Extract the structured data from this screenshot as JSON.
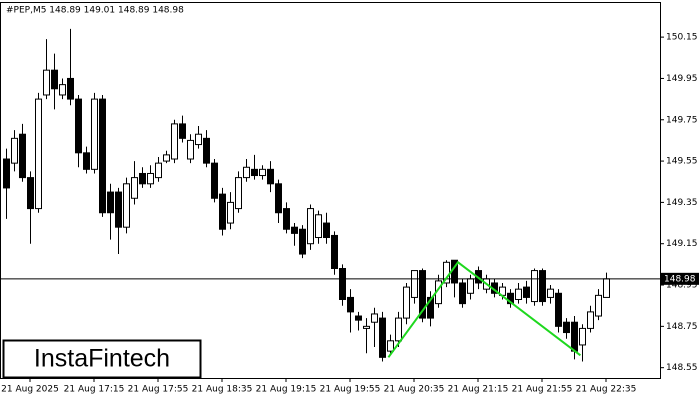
{
  "chart_data": {
    "type": "candlestick",
    "info": "#PEP,M5  148.89 149.01 148.89 148.98",
    "watermark": "InstaFintech",
    "categories": [
      null,
      null,
      null,
      "21 Aug 2025",
      null,
      null,
      null,
      null,
      null,
      null,
      null,
      "21 Aug 17:15",
      null,
      null,
      null,
      null,
      null,
      null,
      null,
      "21 Aug 17:55",
      null,
      null,
      null,
      null,
      null,
      null,
      null,
      "21 Aug 18:35",
      null,
      null,
      null,
      null,
      null,
      null,
      null,
      "21 Aug 19:15",
      null,
      null,
      null,
      null,
      null,
      null,
      null,
      "21 Aug 19:55",
      null,
      null,
      null,
      null,
      null,
      null,
      null,
      "21 Aug 20:35",
      null,
      null,
      null,
      null,
      null,
      null,
      null,
      "21 Aug 21:15",
      null,
      null,
      null,
      null,
      null,
      null,
      null,
      "21 Aug 21:55",
      null,
      null,
      null,
      null,
      null,
      null,
      null,
      "21 Aug 22:35"
    ],
    "open": [
      149.56,
      149.54,
      149.68,
      149.47,
      149.32,
      149.87,
      149.99,
      149.87,
      149.95,
      149.85,
      149.59,
      149.51,
      149.85,
      149.4,
      149.4,
      149.23,
      149.37,
      149.49,
      149.44,
      149.47,
      149.55,
      149.56,
      149.73,
      149.56,
      149.63,
      149.66,
      149.54,
      149.39,
      149.25,
      149.32,
      149.47,
      149.51,
      149.48,
      149.51,
      149.44,
      149.32,
      149.23,
      149.22,
      149.15,
      149.18,
      149.25,
      149.19,
      149.03,
      148.89,
      148.8,
      148.74,
      148.77,
      148.79,
      148.63,
      148.68,
      148.79,
      148.89,
      149.02,
      148.89,
      148.86,
      148.96,
      149.07,
      148.96,
      148.91,
      149.02,
      148.93,
      148.96,
      148.9,
      148.91,
      148.88,
      148.94,
      148.87,
      149.02,
      148.89,
      148.91,
      148.77,
      148.77,
      148.66,
      148.74,
      148.8,
      148.89
    ],
    "high": [
      149.61,
      149.7,
      149.73,
      149.5,
      149.88,
      150.14,
      150.07,
      149.95,
      150.19,
      149.87,
      149.62,
      149.88,
      149.87,
      149.44,
      149.42,
      149.47,
      149.55,
      149.52,
      149.53,
      149.57,
      149.6,
      149.75,
      149.77,
      149.68,
      149.72,
      149.7,
      149.56,
      149.42,
      149.4,
      149.5,
      149.56,
      149.58,
      149.53,
      149.55,
      149.46,
      149.35,
      149.25,
      149.24,
      149.34,
      149.31,
      149.3,
      149.21,
      149.05,
      148.93,
      148.82,
      148.79,
      148.84,
      148.82,
      148.71,
      148.82,
      148.96,
      149.02,
      149.03,
      148.92,
      149.0,
      149.07,
      149.07,
      148.98,
      149.0,
      149.04,
      149.0,
      148.98,
      148.96,
      148.93,
      148.96,
      148.97,
      149.03,
      149.03,
      148.95,
      148.93,
      148.79,
      148.8,
      148.76,
      148.85,
      148.93,
      149.01
    ],
    "low": [
      149.27,
      149.5,
      149.45,
      149.15,
      149.3,
      149.85,
      149.8,
      149.85,
      149.82,
      149.52,
      149.49,
      149.49,
      149.28,
      149.17,
      149.1,
      149.2,
      149.34,
      149.42,
      149.42,
      149.45,
      149.54,
      149.54,
      149.64,
      149.54,
      149.61,
      149.52,
      149.35,
      149.19,
      149.22,
      149.3,
      149.45,
      149.46,
      149.46,
      149.4,
      149.25,
      149.2,
      149.14,
      149.08,
      149.12,
      149.15,
      149.15,
      149.0,
      148.85,
      148.72,
      148.73,
      148.62,
      148.65,
      148.58,
      148.61,
      148.65,
      148.76,
      148.86,
      148.77,
      148.75,
      148.84,
      148.94,
      148.89,
      148.84,
      148.88,
      148.93,
      148.91,
      148.89,
      148.88,
      148.84,
      148.86,
      148.86,
      148.85,
      148.85,
      148.86,
      148.72,
      148.69,
      148.59,
      148.58,
      148.72,
      148.78,
      148.89
    ],
    "close": [
      149.42,
      149.66,
      149.47,
      149.32,
      149.85,
      149.99,
      149.9,
      149.92,
      149.85,
      149.59,
      149.51,
      149.85,
      149.3,
      149.3,
      149.23,
      149.44,
      149.47,
      149.44,
      149.49,
      149.54,
      149.58,
      149.73,
      149.66,
      149.65,
      149.68,
      149.54,
      149.37,
      149.22,
      149.35,
      149.47,
      149.52,
      149.48,
      149.51,
      149.44,
      149.3,
      149.22,
      149.2,
      149.1,
      149.32,
      149.29,
      149.18,
      149.03,
      148.88,
      148.82,
      148.78,
      148.75,
      148.81,
      148.6,
      148.68,
      148.79,
      148.94,
      149.02,
      148.79,
      148.79,
      148.97,
      149.06,
      148.96,
      148.86,
      148.98,
      148.96,
      148.98,
      148.91,
      148.94,
      148.86,
      148.93,
      148.89,
      149.02,
      148.87,
      148.93,
      148.75,
      148.72,
      148.63,
      148.74,
      148.82,
      148.9,
      148.98
    ],
    "up_color": "#ffffff",
    "down_color": "#000000",
    "edge_color": "#000000",
    "ylim": [
      148.5,
      150.32
    ],
    "yticks": [
      150.15,
      149.95,
      149.75,
      149.55,
      149.35,
      149.15,
      148.95,
      148.75,
      148.55
    ],
    "current": 148.98,
    "pattern": {
      "color": "#1ed81e",
      "x": [
        47.8,
        56.5,
        71.8
      ],
      "y": [
        148.6,
        149.06,
        148.61
      ]
    }
  }
}
